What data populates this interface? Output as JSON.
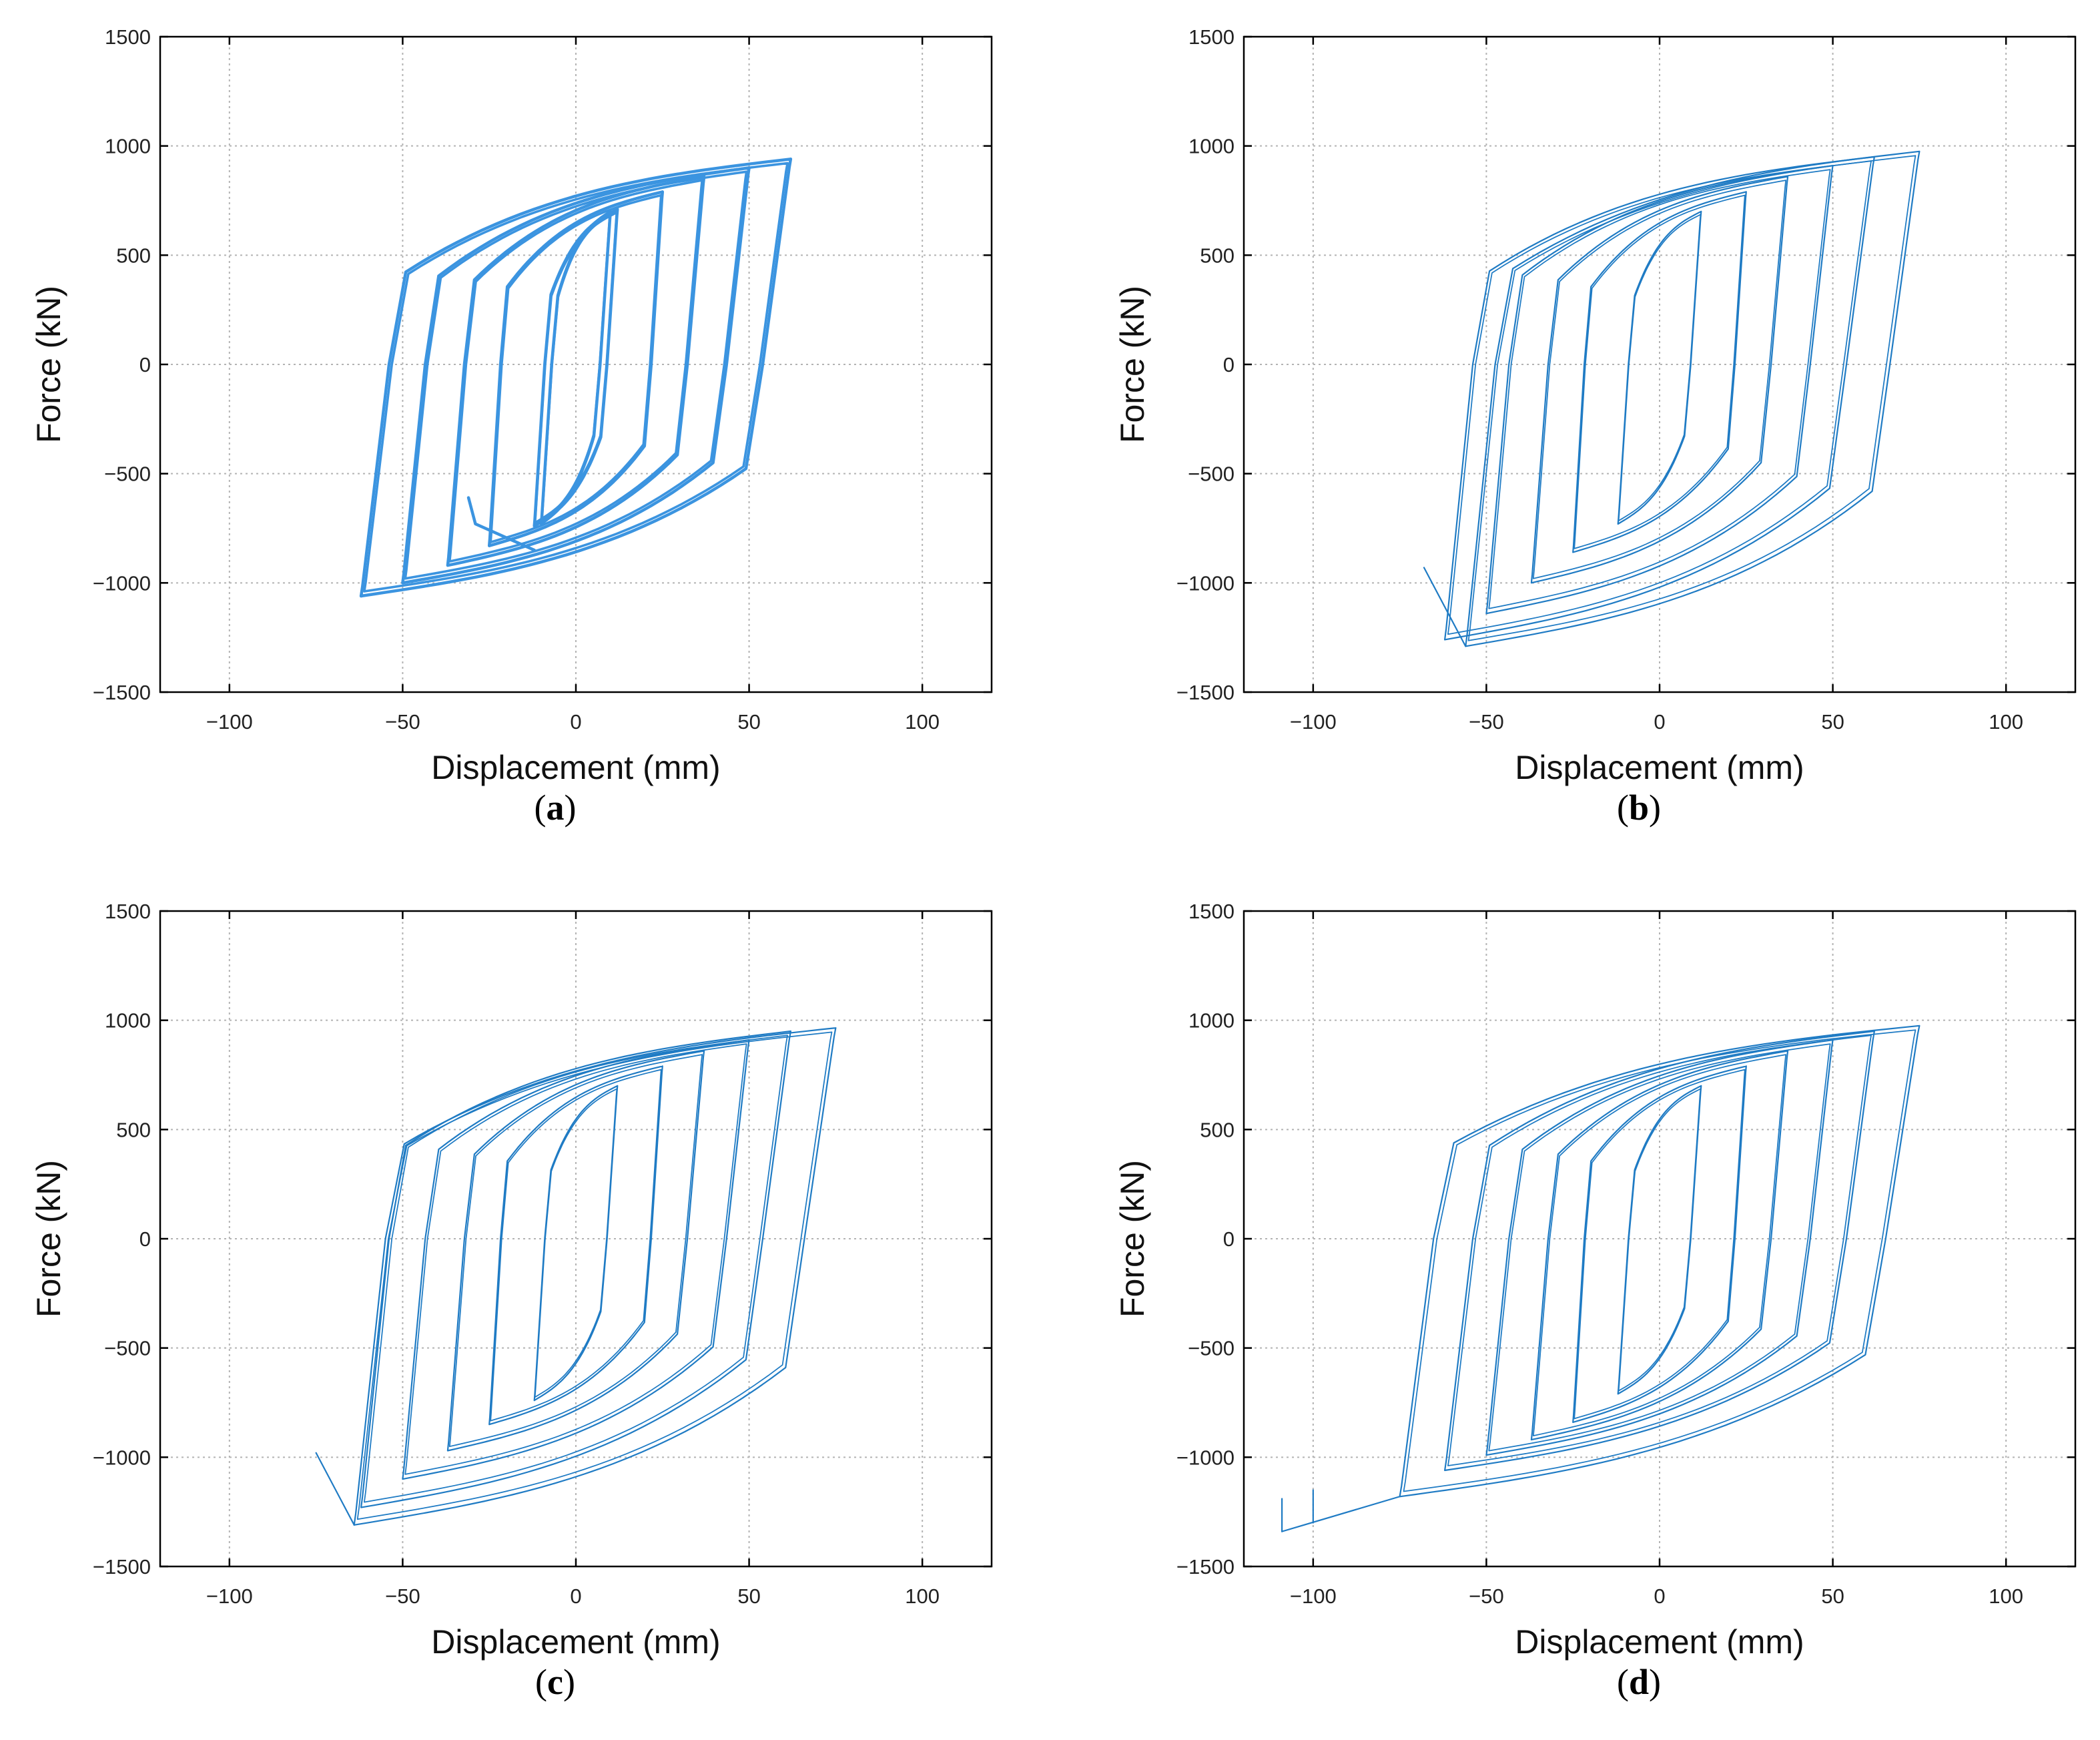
{
  "figure": {
    "panels": [
      {
        "id": "a",
        "caption": {
          "open": "(",
          "letter": "a",
          "close": ")"
        },
        "x_axis_label": "Displacement (mm)",
        "y_axis_label": "Force (kN)",
        "x_tick_labels": [
          "−100",
          "−50",
          "0",
          "50",
          "100"
        ],
        "y_tick_labels": [
          "1500",
          "1000",
          "500",
          "0",
          "−500",
          "−1000",
          "−1500"
        ]
      },
      {
        "id": "b",
        "caption": {
          "open": "(",
          "letter": "b",
          "close": ")"
        },
        "x_axis_label": "Displacement (mm)",
        "y_axis_label": "Force (kN)",
        "x_tick_labels": [
          "−100",
          "−50",
          "0",
          "50",
          "100"
        ],
        "y_tick_labels": [
          "1500",
          "1000",
          "500",
          "0",
          "−500",
          "−1000",
          "−1500"
        ]
      },
      {
        "id": "c",
        "caption": {
          "open": "(",
          "letter": "c",
          "close": ")"
        },
        "x_axis_label": "Displacement (mm)",
        "y_axis_label": "Force (kN)",
        "x_tick_labels": [
          "−100",
          "−50",
          "0",
          "50",
          "100"
        ],
        "y_tick_labels": [
          "1500",
          "1000",
          "500",
          "0",
          "−500",
          "−1000",
          "−1500"
        ]
      },
      {
        "id": "d",
        "caption": {
          "open": "(",
          "letter": "d",
          "close": ")"
        },
        "x_axis_label": "Displacement (mm)",
        "y_axis_label": "Force (kN)",
        "x_tick_labels": [
          "−100",
          "−50",
          "0",
          "50",
          "100"
        ],
        "y_tick_labels": [
          "1500",
          "1000",
          "500",
          "0",
          "−500",
          "−1000",
          "−1500"
        ]
      }
    ]
  },
  "chart_data": [
    {
      "panel": "a",
      "type": "line",
      "title": "",
      "xlabel": "Displacement (mm)",
      "ylabel": "Force (kN)",
      "xlim": [
        -120,
        120
      ],
      "ylim": [
        -1500,
        1500
      ],
      "xticks": [
        -100,
        -50,
        0,
        50,
        100
      ],
      "yticks": [
        -1500,
        -1000,
        -500,
        0,
        500,
        1000,
        1500
      ],
      "grid": true,
      "line_color": "#3b94e0",
      "line_weight": "heavy",
      "loops": [
        {
          "peak_pos": [
            10,
            700
          ],
          "peak_neg": [
            -10,
            -730
          ]
        },
        {
          "peak_pos": [
            12,
            710
          ],
          "peak_neg": [
            -12,
            -740
          ]
        },
        {
          "peak_pos": [
            25,
            790
          ],
          "peak_neg": [
            -25,
            -830
          ]
        },
        {
          "peak_pos": [
            37,
            860
          ],
          "peak_neg": [
            -37,
            -920
          ]
        },
        {
          "peak_pos": [
            50,
            900
          ],
          "peak_neg": [
            -50,
            -1000
          ]
        },
        {
          "peak_pos": [
            62,
            940
          ],
          "peak_neg": [
            -62,
            -1060
          ]
        }
      ],
      "start_point": [
        -31,
        -610
      ],
      "end_point": [
        -62,
        -1060
      ]
    },
    {
      "panel": "b",
      "type": "line",
      "title": "",
      "xlabel": "Displacement (mm)",
      "ylabel": "Force (kN)",
      "xlim": [
        -120,
        120
      ],
      "ylim": [
        -1500,
        1500
      ],
      "xticks": [
        -100,
        -50,
        0,
        50,
        100
      ],
      "yticks": [
        -1500,
        -1000,
        -500,
        0,
        500,
        1000,
        1500
      ],
      "grid": true,
      "line_color": "#1f7bc4",
      "line_weight": "thin",
      "loops": [
        {
          "peak_pos": [
            12,
            700
          ],
          "peak_neg": [
            -12,
            -730
          ]
        },
        {
          "peak_pos": [
            25,
            790
          ],
          "peak_neg": [
            -25,
            -860
          ]
        },
        {
          "peak_pos": [
            37,
            860
          ],
          "peak_neg": [
            -37,
            -1000
          ]
        },
        {
          "peak_pos": [
            50,
            910
          ],
          "peak_neg": [
            -50,
            -1140
          ]
        },
        {
          "peak_pos": [
            62,
            950
          ],
          "peak_neg": [
            -62,
            -1260
          ]
        },
        {
          "peak_pos": [
            75,
            975
          ],
          "peak_neg": [
            -56,
            -1290
          ]
        }
      ],
      "end_point": [
        -68,
        -930
      ]
    },
    {
      "panel": "c",
      "type": "line",
      "title": "",
      "xlabel": "Displacement (mm)",
      "ylabel": "Force (kN)",
      "xlim": [
        -120,
        120
      ],
      "ylim": [
        -1500,
        1500
      ],
      "xticks": [
        -100,
        -50,
        0,
        50,
        100
      ],
      "yticks": [
        -1500,
        -1000,
        -500,
        0,
        500,
        1000,
        1500
      ],
      "grid": true,
      "line_color": "#1f7bc4",
      "line_weight": "thin",
      "loops": [
        {
          "peak_pos": [
            12,
            700
          ],
          "peak_neg": [
            -12,
            -740
          ]
        },
        {
          "peak_pos": [
            25,
            790
          ],
          "peak_neg": [
            -25,
            -850
          ]
        },
        {
          "peak_pos": [
            37,
            860
          ],
          "peak_neg": [
            -37,
            -970
          ]
        },
        {
          "peak_pos": [
            50,
            910
          ],
          "peak_neg": [
            -50,
            -1100
          ]
        },
        {
          "peak_pos": [
            62,
            950
          ],
          "peak_neg": [
            -62,
            -1230
          ]
        },
        {
          "peak_pos": [
            75,
            965
          ],
          "peak_neg": [
            -64,
            -1310
          ]
        }
      ],
      "end_point": [
        -75,
        -980
      ]
    },
    {
      "panel": "d",
      "type": "line",
      "title": "",
      "xlabel": "Displacement (mm)",
      "ylabel": "Force (kN)",
      "xlim": [
        -120,
        120
      ],
      "ylim": [
        -1500,
        1500
      ],
      "xticks": [
        -100,
        -50,
        0,
        50,
        100
      ],
      "yticks": [
        -1500,
        -1000,
        -500,
        0,
        500,
        1000,
        1500
      ],
      "grid": true,
      "line_color": "#1f7bc4",
      "line_weight": "thin",
      "loops": [
        {
          "peak_pos": [
            12,
            700
          ],
          "peak_neg": [
            -12,
            -710
          ]
        },
        {
          "peak_pos": [
            25,
            790
          ],
          "peak_neg": [
            -25,
            -840
          ]
        },
        {
          "peak_pos": [
            37,
            860
          ],
          "peak_neg": [
            -37,
            -920
          ]
        },
        {
          "peak_pos": [
            50,
            910
          ],
          "peak_neg": [
            -50,
            -990
          ]
        },
        {
          "peak_pos": [
            62,
            950
          ],
          "peak_neg": [
            -62,
            -1060
          ]
        },
        {
          "peak_pos": [
            75,
            975
          ],
          "peak_neg": [
            -75,
            -1180
          ]
        }
      ],
      "end_point": [
        -109,
        -1340
      ],
      "spikes": [
        [
          -109,
          -1190
        ],
        [
          -100,
          -1150
        ]
      ]
    }
  ]
}
